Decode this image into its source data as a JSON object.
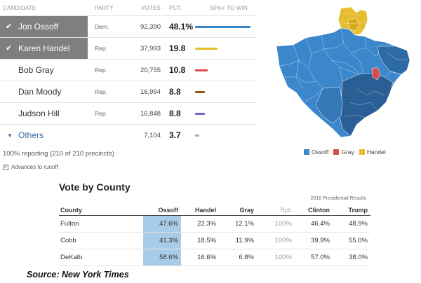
{
  "results": {
    "headers": {
      "candidate": "CANDIDATE",
      "party": "PARTY",
      "votes": "VOTES",
      "pct": "PCT.",
      "bar": "50%+ TO WIN"
    },
    "rows": [
      {
        "name": "Jon Ossoff",
        "party": "Dem.",
        "votes": "92,390",
        "pct": "48.1%",
        "pct_value": 48.1,
        "color": "#3c87cc",
        "advances": true
      },
      {
        "name": "Karen Handel",
        "party": "Rep.",
        "votes": "37,993",
        "pct": "19.8",
        "pct_value": 19.8,
        "color": "#e6bd2e",
        "advances": true
      },
      {
        "name": "Bob Gray",
        "party": "Rep.",
        "votes": "20,755",
        "pct": "10.8",
        "pct_value": 10.8,
        "color": "#d94b4b",
        "advances": false
      },
      {
        "name": "Dan Moody",
        "party": "Rep.",
        "votes": "16,994",
        "pct": "8.8",
        "pct_value": 8.8,
        "color": "#9a5a16",
        "advances": false
      },
      {
        "name": "Judson Hill",
        "party": "Rep.",
        "votes": "16,848",
        "pct": "8.8",
        "pct_value": 8.8,
        "color": "#7a5cc6",
        "advances": false
      }
    ],
    "others": {
      "label": "Others",
      "votes": "7,104",
      "pct": "3.7",
      "pct_value": 3.7,
      "color": "#aaaaaa"
    },
    "reporting": "100% reporting (210 of 210 precincts)",
    "advances_note": "Advances to runoff"
  },
  "map": {
    "legend": [
      {
        "label": "Ossoff",
        "color": "#3c87cc"
      },
      {
        "label": "Gray",
        "color": "#d94b4b"
      },
      {
        "label": "Handel",
        "color": "#e6bd2e"
      }
    ]
  },
  "county": {
    "title": "Vote by County",
    "super_header": "2016 Presidential Results",
    "headers": [
      "County",
      "Ossoff",
      "Handel",
      "Gray",
      "Rpt.",
      "Clinton",
      "Trump"
    ],
    "rows": [
      {
        "county": "Fulton",
        "ossoff": "47.6%",
        "handel": "22.3%",
        "gray": "12.1%",
        "rpt": "100%",
        "clinton": "46.4%",
        "trump": "48.9%"
      },
      {
        "county": "Cobb",
        "ossoff": "41.3%",
        "handel": "18.5%",
        "gray": "11.9%",
        "rpt": "100%",
        "clinton": "39.9%",
        "trump": "55.0%"
      },
      {
        "county": "DeKalb",
        "ossoff": "58.6%",
        "handel": "16.6%",
        "gray": "6.8%",
        "rpt": "100%",
        "clinton": "57.0%",
        "trump": "38.0%"
      }
    ]
  },
  "source": "Source: New York Times"
}
